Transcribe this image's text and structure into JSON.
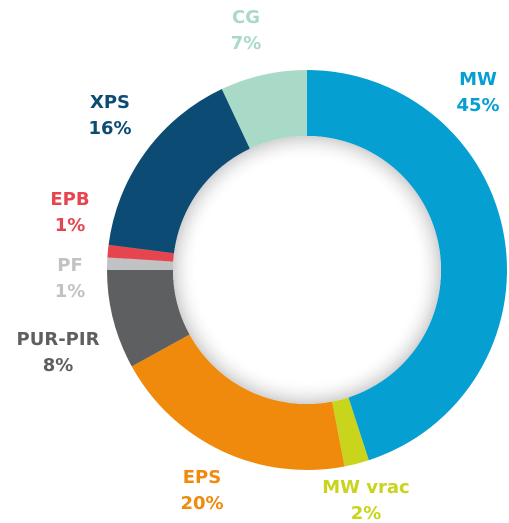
{
  "chart_data": {
    "type": "donut",
    "categories": [
      "MW",
      "MW vrac",
      "EPS",
      "PUR-PIR",
      "PF",
      "EPB",
      "XPS",
      "CG"
    ],
    "values": [
      45,
      2,
      20,
      8,
      1,
      1,
      16,
      7
    ],
    "value_labels": [
      "45%",
      "2%",
      "20%",
      "8%",
      "1%",
      "1%",
      "16%",
      "7%"
    ],
    "colors": [
      "#069fd2",
      "#c9d41c",
      "#ef8a0c",
      "#5e5f61",
      "#c0c2c4",
      "#e6444f",
      "#0c4c74",
      "#a9d9c7"
    ]
  }
}
